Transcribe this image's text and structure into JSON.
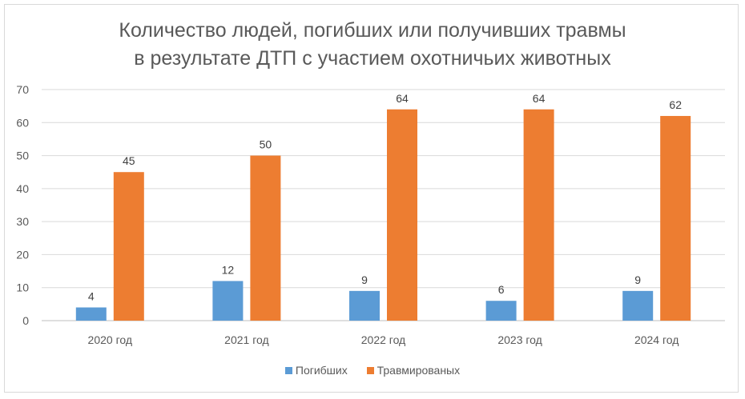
{
  "chart_data": {
    "type": "bar",
    "title_lines": [
      "Количество людей, погибших или получивших травмы",
      "в результате ДТП с участием охотничьих животных"
    ],
    "categories": [
      "2020 год",
      "2021 год",
      "2022 год",
      "2023 год",
      "2024 год"
    ],
    "series": [
      {
        "name": "Погибших",
        "values": [
          4,
          12,
          9,
          6,
          9
        ],
        "color": "#5b9bd5"
      },
      {
        "name": "Травмированых",
        "values": [
          45,
          50,
          64,
          64,
          62
        ],
        "color": "#ed7d31"
      }
    ],
    "ylim": [
      0,
      70
    ],
    "yticks": [
      0,
      10,
      20,
      30,
      40,
      50,
      60,
      70
    ],
    "grid": true,
    "legend": "bottom",
    "data_labels": true
  }
}
